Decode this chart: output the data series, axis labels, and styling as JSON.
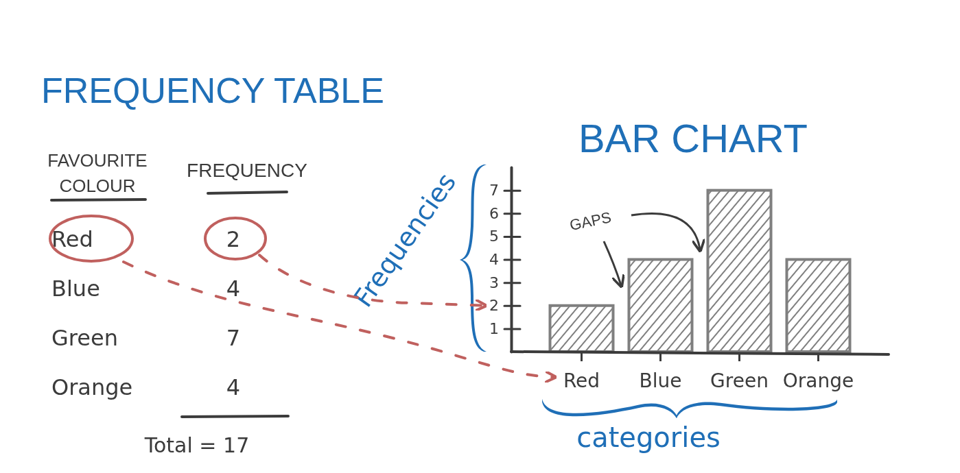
{
  "chart_data": [
    {
      "type": "other",
      "title": "FREQUENCY TABLE",
      "xlabel": "FAVOURITE COLOUR",
      "ylabel": "FREQUENCY",
      "categories": [
        "Red",
        "Blue",
        "Green",
        "Orange"
      ],
      "values": [
        2,
        4,
        7,
        4
      ],
      "data_labels": true,
      "annotations": [
        "Total = 17"
      ]
    },
    {
      "type": "bar",
      "title": "BAR CHART",
      "xlabel": "categories",
      "ylabel": "Frequencies",
      "categories": [
        "Red",
        "Blue",
        "Green",
        "Orange"
      ],
      "values": [
        2,
        4,
        7,
        4
      ],
      "color": "#7f7f7f",
      "ylim": [
        0,
        8
      ],
      "yticks": [
        1,
        2,
        3,
        4,
        5,
        6,
        7
      ],
      "annotations": [
        "GAPS"
      ]
    }
  ]
}
